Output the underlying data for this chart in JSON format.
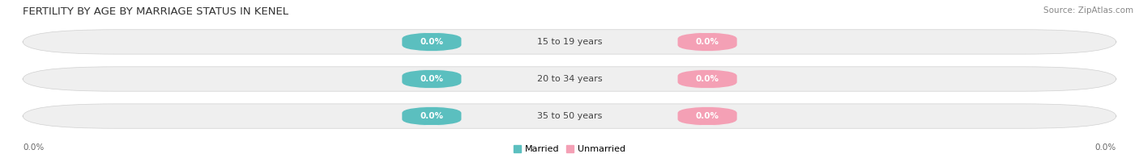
{
  "title": "FERTILITY BY AGE BY MARRIAGE STATUS IN KENEL",
  "source_text": "Source: ZipAtlas.com",
  "categories": [
    "15 to 19 years",
    "20 to 34 years",
    "35 to 50 years"
  ],
  "married_values": [
    0.0,
    0.0,
    0.0
  ],
  "unmarried_values": [
    0.0,
    0.0,
    0.0
  ],
  "married_color": "#5bbfbf",
  "unmarried_color": "#f4a0b5",
  "bar_bg_color": "#efefef",
  "bar_border_color": "#d0d0d0",
  "title_fontsize": 9.5,
  "source_fontsize": 7.5,
  "label_fontsize": 7.5,
  "category_fontsize": 8,
  "legend_fontsize": 8,
  "background_color": "#ffffff",
  "axis_label_left": "0.0%",
  "axis_label_right": "0.0%"
}
